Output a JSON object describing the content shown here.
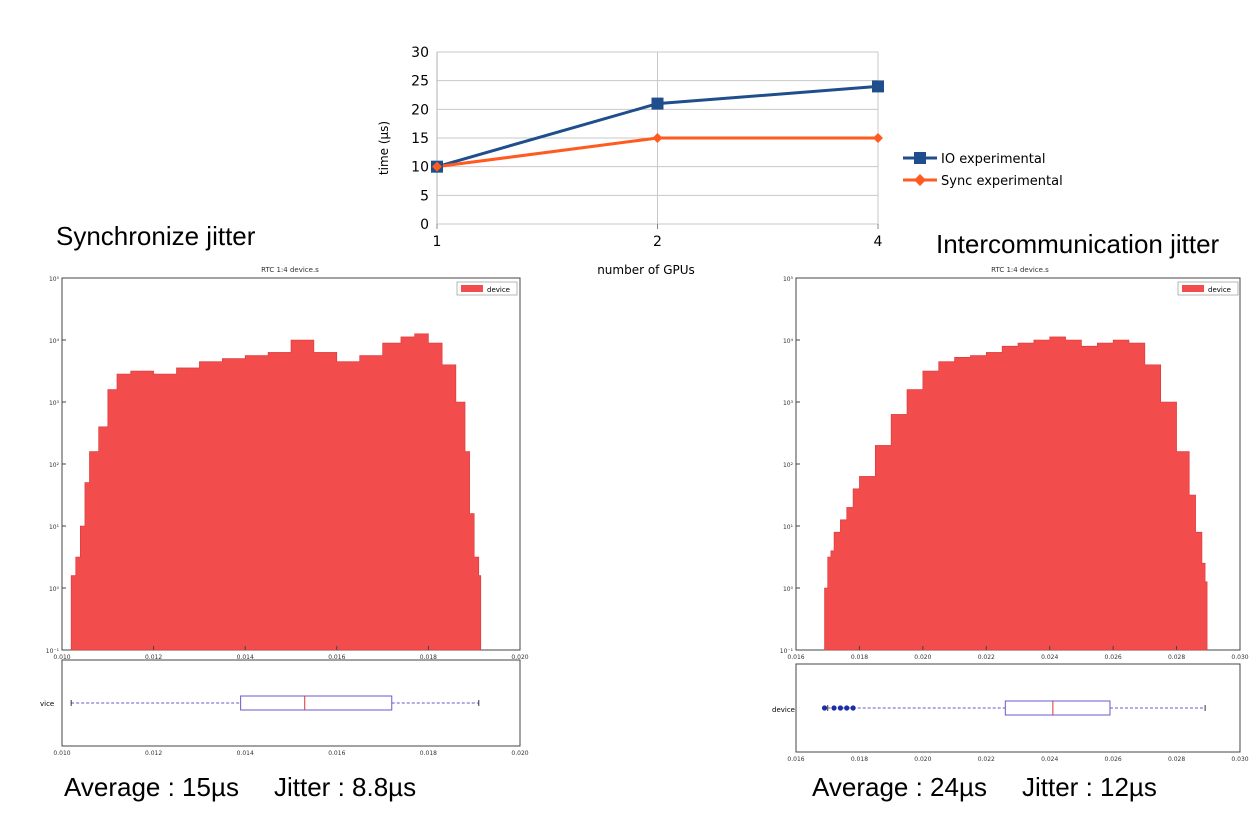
{
  "line_chart": {
    "ylabel": "time (µs)",
    "xlabel": "number of GPUs"
  },
  "left_panel": {
    "heading": "Synchronize jitter",
    "subtitle": "RTC 1:4 device.s",
    "legend": "device",
    "box_label": "vice",
    "average_text": "Average : 15µs",
    "jitter_text": "Jitter : 8.8µs"
  },
  "right_panel": {
    "heading": "Intercommunication  jitter",
    "subtitle": "RTC 1:4 device.s",
    "legend": "device",
    "box_label": "device",
    "average_text": "Average : 24µs",
    "jitter_text": "Jitter : 12µs"
  },
  "colors": {
    "io_series": "#1f4e8c",
    "sync_series": "#ff5a1f",
    "histogram_fill": "#f34c4c",
    "box": "#6a5acd"
  },
  "chart_data": [
    {
      "type": "line",
      "categories": [
        "1",
        "2",
        "4"
      ],
      "ylim": [
        0,
        30
      ],
      "yticks": [
        0,
        5,
        10,
        15,
        20,
        25,
        30
      ],
      "grid": true,
      "legend_position": "right",
      "series": [
        {
          "name": "IO experimental",
          "values": [
            10,
            21,
            24
          ]
        },
        {
          "name": "Sync experimental",
          "values": [
            10,
            15,
            15
          ]
        }
      ]
    },
    {
      "type": "area",
      "title": "RTC 1:4 device.s",
      "log_y": true,
      "ylim_exp": [
        -1,
        5
      ],
      "ytick_labels": [
        "10⁻¹",
        "10⁰",
        "10¹",
        "10²",
        "10³",
        "10⁴",
        "10⁵"
      ],
      "xlim": [
        0.01,
        0.02
      ],
      "xticks": [
        "0.010",
        "0.012",
        "0.014",
        "0.016",
        "0.018",
        "0.020"
      ],
      "series": [
        {
          "name": "device",
          "x": [
            0.0102,
            0.0103,
            0.0104,
            0.0105,
            0.0106,
            0.0108,
            0.011,
            0.0112,
            0.0115,
            0.012,
            0.0125,
            0.013,
            0.0135,
            0.014,
            0.0145,
            0.015,
            0.0155,
            0.016,
            0.0165,
            0.017,
            0.0174,
            0.0177,
            0.018,
            0.0183,
            0.0186,
            0.0188,
            0.0189,
            0.019,
            0.0191
          ],
          "log10_y": [
            0.2,
            0.5,
            1.0,
            1.7,
            2.2,
            2.6,
            3.2,
            3.45,
            3.5,
            3.45,
            3.55,
            3.65,
            3.7,
            3.75,
            3.8,
            4.0,
            3.8,
            3.65,
            3.75,
            3.95,
            4.05,
            4.1,
            3.95,
            3.6,
            3.0,
            2.2,
            1.2,
            0.5,
            0.2
          ]
        }
      ],
      "box": {
        "whisker_low": 0.0102,
        "q1": 0.0139,
        "median": 0.0153,
        "q3": 0.0172,
        "whisker_high": 0.0191
      }
    },
    {
      "type": "area",
      "title": "RTC 1:4 device.s",
      "log_y": true,
      "ylim_exp": [
        -1,
        5
      ],
      "ytick_labels": [
        "10⁻¹",
        "10⁰",
        "10¹",
        "10²",
        "10³",
        "10⁴",
        "10⁵"
      ],
      "xlim": [
        0.016,
        0.03
      ],
      "xticks": [
        "0.016",
        "0.018",
        "0.020",
        "0.022",
        "0.024",
        "0.026",
        "0.028",
        "0.030"
      ],
      "series": [
        {
          "name": "device",
          "x": [
            0.0169,
            0.017,
            0.0171,
            0.0172,
            0.0174,
            0.0176,
            0.0178,
            0.018,
            0.0185,
            0.019,
            0.0195,
            0.02,
            0.0205,
            0.021,
            0.0215,
            0.022,
            0.0225,
            0.023,
            0.0235,
            0.024,
            0.0245,
            0.025,
            0.0255,
            0.026,
            0.0265,
            0.027,
            0.0275,
            0.028,
            0.0284,
            0.0286,
            0.0288,
            0.0289
          ],
          "log10_y": [
            0.0,
            0.5,
            0.6,
            0.9,
            1.1,
            1.3,
            1.6,
            1.8,
            2.3,
            2.8,
            3.2,
            3.5,
            3.65,
            3.72,
            3.75,
            3.8,
            3.9,
            3.95,
            4.0,
            4.05,
            4.0,
            3.9,
            3.95,
            4.0,
            3.95,
            3.6,
            3.0,
            2.2,
            1.5,
            0.9,
            0.4,
            0.1
          ]
        }
      ],
      "box": {
        "whisker_low": 0.017,
        "q1": 0.0226,
        "median": 0.0241,
        "q3": 0.0259,
        "whisker_high": 0.0289,
        "outliers": [
          0.0169,
          0.0172,
          0.0174,
          0.0176,
          0.0178
        ]
      }
    }
  ]
}
